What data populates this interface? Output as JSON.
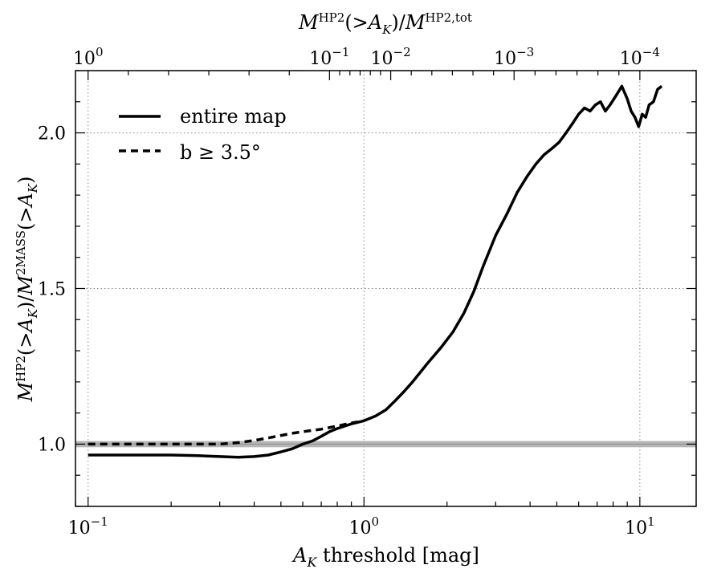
{
  "chart_data": {
    "type": "line",
    "xscale": "log",
    "xlim": [
      0.09,
      16
    ],
    "ylim": [
      0.8,
      2.2
    ],
    "xlabel_var": "A",
    "xlabel_sub": "K",
    "xlabel_rest": "threshold [mag]",
    "ylabel": "M^HP2(>A_K)/M^2MASS(>A_K)",
    "top_xlabel": "M^HP2(>A_K)/M^HP2,tot",
    "grid": true,
    "x_ticks": [
      {
        "value": 0.1,
        "base": "10",
        "exp": "−1"
      },
      {
        "value": 1,
        "base": "10",
        "exp": "0"
      },
      {
        "value": 10,
        "base": "10",
        "exp": "1"
      }
    ],
    "y_ticks": [
      {
        "value": 1.0,
        "label": "1.0"
      },
      {
        "value": 1.5,
        "label": "1.5"
      },
      {
        "value": 2.0,
        "label": "2.0"
      }
    ],
    "top_ticks": [
      {
        "value": 0.1,
        "base": "10",
        "exp": "0"
      },
      {
        "value": 0.75,
        "base": "10",
        "exp": "−1"
      },
      {
        "value": 1.25,
        "base": "10",
        "exp": "−2"
      },
      {
        "value": 3.5,
        "base": "10",
        "exp": "−3"
      },
      {
        "value": 10,
        "base": "10",
        "exp": "−4"
      }
    ],
    "reference_band": {
      "y_low": 0.99,
      "y_high": 1.01,
      "y_line": 1.0
    },
    "legend": {
      "position": "top-left",
      "entries": [
        "entire map",
        "b ≥ 3.5°"
      ]
    },
    "series": [
      {
        "name": "entire map",
        "style": "solid",
        "x": [
          0.1,
          0.15,
          0.2,
          0.25,
          0.3,
          0.35,
          0.4,
          0.45,
          0.5,
          0.55,
          0.6,
          0.65,
          0.7,
          0.75,
          0.8,
          0.9,
          1.0,
          1.1,
          1.2,
          1.3,
          1.4,
          1.5,
          1.7,
          1.9,
          2.1,
          2.3,
          2.5,
          2.7,
          3.0,
          3.3,
          3.6,
          3.9,
          4.2,
          4.5,
          4.8,
          5.1,
          5.4,
          5.7,
          6.0,
          6.3,
          6.6,
          6.9,
          7.2,
          7.5,
          7.8,
          8.2,
          8.6,
          9.0,
          9.3,
          9.6,
          9.9,
          10.2,
          10.5,
          10.8,
          11.2,
          11.6,
          12.0
        ],
        "y": [
          0.965,
          0.965,
          0.965,
          0.963,
          0.96,
          0.958,
          0.96,
          0.965,
          0.975,
          0.985,
          1.0,
          1.01,
          1.025,
          1.04,
          1.05,
          1.065,
          1.075,
          1.09,
          1.11,
          1.14,
          1.17,
          1.2,
          1.26,
          1.31,
          1.36,
          1.42,
          1.49,
          1.57,
          1.67,
          1.74,
          1.81,
          1.86,
          1.9,
          1.93,
          1.95,
          1.97,
          2.0,
          2.03,
          2.06,
          2.08,
          2.07,
          2.09,
          2.1,
          2.07,
          2.09,
          2.12,
          2.15,
          2.11,
          2.07,
          2.05,
          2.02,
          2.06,
          2.05,
          2.09,
          2.1,
          2.14,
          2.15
        ]
      },
      {
        "name": "b ≥ 3.5°",
        "style": "dashed",
        "x": [
          0.1,
          0.15,
          0.2,
          0.25,
          0.3,
          0.35,
          0.4,
          0.45,
          0.5,
          0.55,
          0.6,
          0.7,
          0.8,
          0.9,
          1.0
        ],
        "y": [
          1.0,
          1.0,
          1.0,
          1.0,
          1.0,
          1.005,
          1.012,
          1.02,
          1.028,
          1.035,
          1.04,
          1.048,
          1.058,
          1.068,
          1.075
        ]
      }
    ]
  }
}
